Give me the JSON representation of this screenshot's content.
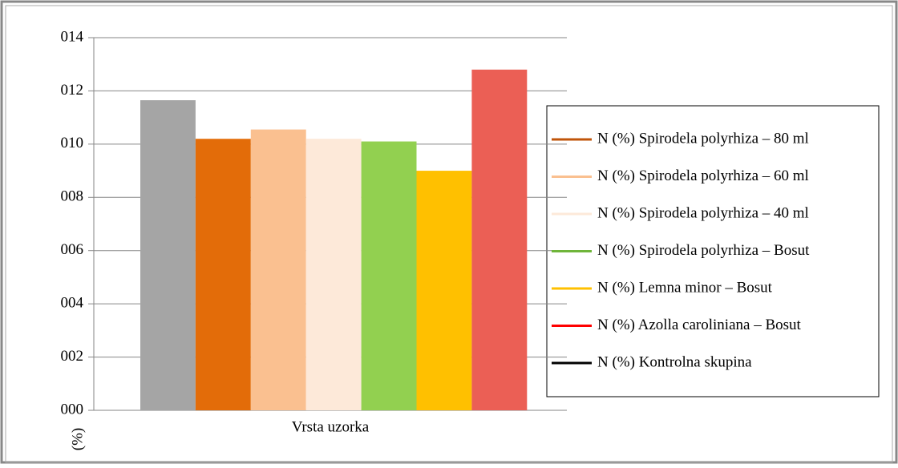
{
  "chart_data": {
    "type": "bar",
    "x_label": "Vrsta uzorka",
    "y_label": "(%)",
    "ylim": [
      0,
      14
    ],
    "yticks": [
      {
        "value": 0,
        "label": "000"
      },
      {
        "value": 2,
        "label": "002"
      },
      {
        "value": 4,
        "label": "004"
      },
      {
        "value": 6,
        "label": "006"
      },
      {
        "value": 8,
        "label": "008"
      },
      {
        "value": 10,
        "label": "010"
      },
      {
        "value": 12,
        "label": "012"
      },
      {
        "value": 14,
        "label": "014"
      }
    ],
    "grid": true,
    "legend": "right",
    "series": [
      {
        "name": "N (%) Kontrolna skupina",
        "color": "#a5a5a5",
        "legend_color": "#000000",
        "values": [
          11.65
        ]
      },
      {
        "name": "N (%) Spirodela polyrhiza – 80 ml",
        "color": "#e36c09",
        "legend_color": "#c0540a",
        "values": [
          10.2
        ]
      },
      {
        "name": "N (%) Spirodela polyrhiza – 60 ml",
        "color": "#fac090",
        "legend_color": "#fac090",
        "values": [
          10.55
        ]
      },
      {
        "name": "N (%) Spirodela polyrhiza – 40 ml",
        "color": "#fde9d9",
        "legend_color": "#fde9d9",
        "values": [
          10.2
        ]
      },
      {
        "name": "N (%) Spirodela polyrhiza – Bosut",
        "color": "#92d050",
        "legend_color": "#6fb53a",
        "values": [
          10.1
        ]
      },
      {
        "name": "N (%) Lemna minor – Bosut",
        "color": "#ffc000",
        "legend_color": "#ffc000",
        "values": [
          9.0
        ]
      },
      {
        "name": "N (%) Azolla caroliniana – Bosut",
        "color": "#eb5f55",
        "legend_color": "#ff0000",
        "values": [
          12.8
        ]
      }
    ]
  }
}
